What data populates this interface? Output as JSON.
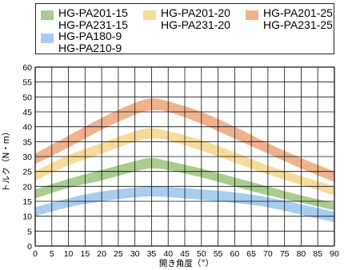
{
  "chart_data": {
    "type": "area",
    "xlabel": "開き角度（°）",
    "ylabel": "トルク（N・m）",
    "xlim": [
      0,
      90
    ],
    "ylim": [
      0,
      60
    ],
    "x_ticks": [
      0,
      5,
      10,
      15,
      20,
      25,
      30,
      35,
      40,
      45,
      50,
      55,
      60,
      65,
      70,
      75,
      80,
      85,
      90
    ],
    "y_ticks": [
      0,
      5,
      10,
      15,
      20,
      25,
      30,
      35,
      40,
      45,
      50,
      55,
      60
    ],
    "grid": true,
    "legend": "top",
    "series": [
      {
        "name_lines": [
          "HG-PA201-15",
          "HG-PA231-15"
        ],
        "color": "#a9cc8f",
        "x": [
          0,
          10,
          20,
          30,
          35,
          40,
          50,
          60,
          70,
          80,
          90
        ],
        "lower": [
          16,
          19.5,
          22,
          25,
          26,
          25.5,
          23,
          20,
          17,
          14.5,
          12
        ],
        "upper": [
          19,
          22.5,
          25.5,
          28.5,
          29.5,
          28.5,
          26,
          23,
          20,
          17,
          14.5
        ]
      },
      {
        "name_lines": [
          "HG-PA201-20",
          "HG-PA231-20"
        ],
        "color": "#f5dc9b",
        "x": [
          0,
          10,
          20,
          30,
          35,
          40,
          50,
          60,
          70,
          80,
          90
        ],
        "lower": [
          22,
          27,
          31,
          35,
          36,
          35.5,
          32,
          28,
          24,
          20.5,
          17
        ],
        "upper": [
          25,
          30.5,
          34.5,
          38.5,
          39.5,
          38.5,
          35.5,
          31.5,
          27,
          23.5,
          20
        ]
      },
      {
        "name_lines": [
          "HG-PA201-25",
          "HG-PA231-25"
        ],
        "color": "#efb28d",
        "x": [
          0,
          10,
          20,
          30,
          35,
          40,
          50,
          60,
          70,
          80,
          90
        ],
        "lower": [
          27.5,
          33,
          39,
          44,
          45.5,
          45,
          41,
          36,
          31,
          26,
          21.5
        ],
        "upper": [
          31,
          37,
          43,
          48,
          49.5,
          48.5,
          45,
          40,
          34.5,
          29.5,
          25
        ]
      },
      {
        "name_lines": [
          "HG-PA180-9",
          "HG-PA210-9"
        ],
        "color": "#a7cdf0",
        "x": [
          0,
          10,
          20,
          30,
          35,
          40,
          50,
          60,
          70,
          80,
          90
        ],
        "lower": [
          10,
          13,
          15,
          16.3,
          16.6,
          16.4,
          15.5,
          14.5,
          13,
          10.5,
          8
        ],
        "upper": [
          13,
          16,
          18.3,
          19.6,
          20,
          19.8,
          19,
          18,
          16.3,
          14,
          11.5
        ]
      }
    ]
  }
}
